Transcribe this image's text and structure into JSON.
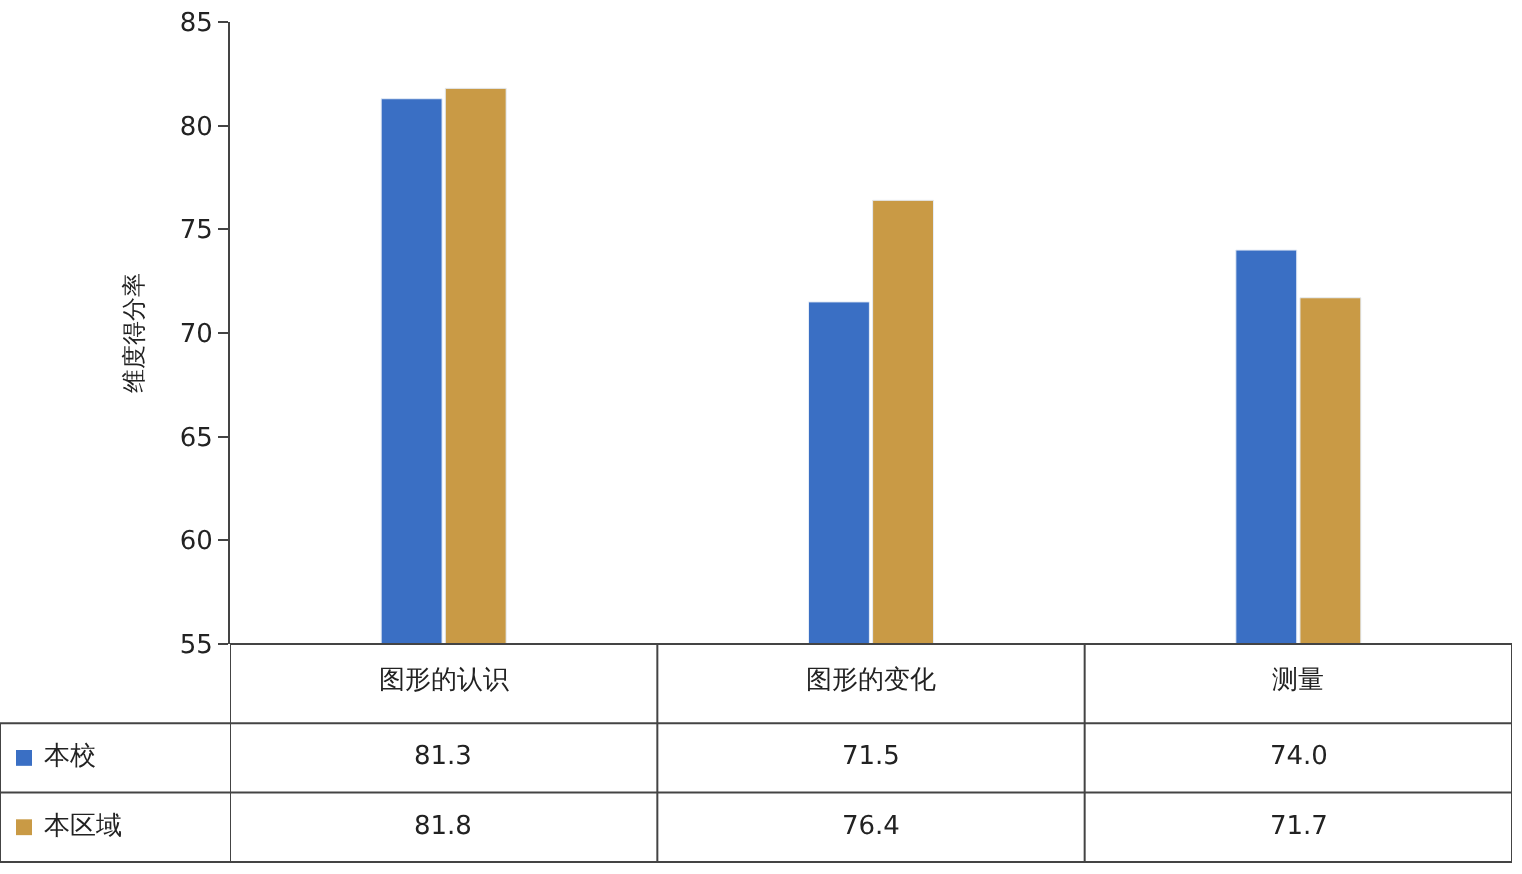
{
  "chart_data": {
    "type": "bar",
    "ylabel": "维度得分率",
    "categories": [
      "图形的认识",
      "图形的变化",
      "测量"
    ],
    "series": [
      {
        "name": "本校",
        "color": "#3a6fc4",
        "values": [
          81.3,
          71.5,
          74.0
        ],
        "value_labels": [
          "81.3",
          "71.5",
          "74.0"
        ]
      },
      {
        "name": "本区域",
        "color": "#c99a45",
        "values": [
          81.8,
          76.4,
          71.7
        ],
        "value_labels": [
          "81.8",
          "76.4",
          "71.7"
        ]
      }
    ],
    "ylim": [
      55,
      85
    ],
    "yticks": [
      55,
      60,
      65,
      70,
      75,
      80,
      85
    ],
    "legend": "bottom left"
  }
}
